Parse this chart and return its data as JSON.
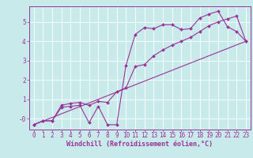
{
  "background_color": "#c8eaea",
  "grid_color": "#b0d8d8",
  "line_color": "#993399",
  "xlabel": "Windchill (Refroidissement éolien,°C)",
  "xlabel_fontsize": 6.0,
  "tick_fontsize": 5.5,
  "xlim": [
    -0.5,
    23.5
  ],
  "ylim": [
    -0.55,
    5.8
  ],
  "ytick_labels": [
    "-0",
    "1",
    "2",
    "3",
    "4",
    "5"
  ],
  "ytick_vals": [
    0,
    1,
    2,
    3,
    4,
    5
  ],
  "xticks": [
    0,
    1,
    2,
    3,
    4,
    5,
    6,
    7,
    8,
    9,
    10,
    11,
    12,
    13,
    14,
    15,
    16,
    17,
    18,
    19,
    20,
    21,
    22,
    23
  ],
  "line1_x": [
    0,
    1,
    2,
    3,
    4,
    5,
    6,
    7,
    8,
    9,
    10,
    11,
    12,
    13,
    14,
    15,
    16,
    17,
    18,
    19,
    20,
    21,
    22,
    23
  ],
  "line1_y": [
    -0.3,
    -0.1,
    -0.1,
    0.6,
    0.65,
    0.7,
    -0.2,
    0.65,
    -0.3,
    -0.3,
    2.75,
    4.35,
    4.7,
    4.65,
    4.85,
    4.85,
    4.6,
    4.65,
    5.2,
    5.4,
    5.55,
    4.75,
    4.5,
    4.0
  ],
  "line2_x": [
    0,
    1,
    2,
    3,
    4,
    5,
    6,
    7,
    8,
    9,
    10,
    11,
    12,
    13,
    14,
    15,
    16,
    17,
    18,
    19,
    20,
    21,
    22,
    23
  ],
  "line2_y": [
    -0.3,
    -0.1,
    -0.1,
    0.7,
    0.8,
    0.85,
    0.7,
    0.9,
    0.85,
    1.4,
    1.6,
    2.7,
    2.8,
    3.25,
    3.55,
    3.8,
    4.0,
    4.2,
    4.5,
    4.8,
    5.0,
    5.15,
    5.3,
    4.0
  ],
  "line3_x": [
    0,
    23
  ],
  "line3_y": [
    -0.3,
    4.0
  ]
}
